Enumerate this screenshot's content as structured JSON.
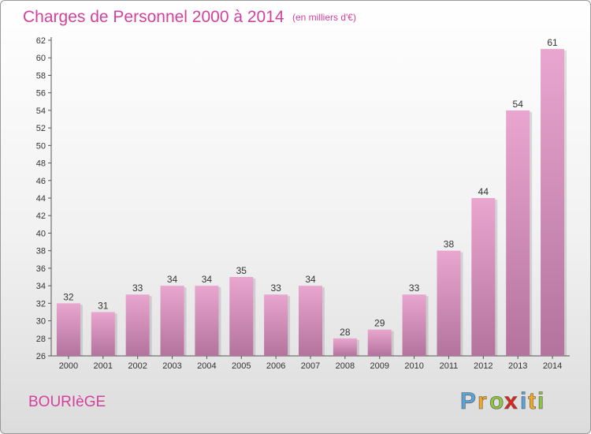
{
  "chart_data": {
    "type": "bar",
    "title": "Charges de Personnel 2000 à 2014",
    "subtitle": "(en milliers d'€)",
    "categories": [
      "2000",
      "2001",
      "2002",
      "2003",
      "2004",
      "2005",
      "2006",
      "2007",
      "2008",
      "2009",
      "2010",
      "2011",
      "2012",
      "2013",
      "2014"
    ],
    "values": [
      32,
      31,
      33,
      34,
      34,
      35,
      33,
      34,
      28,
      29,
      33,
      38,
      44,
      54,
      61
    ],
    "ylim": [
      26,
      62
    ],
    "yticks": [
      26,
      28,
      30,
      32,
      34,
      36,
      38,
      40,
      42,
      44,
      46,
      48,
      50,
      52,
      54,
      56,
      58,
      60,
      62
    ],
    "grid": false,
    "legend": "none",
    "bar_color_top": "#e9a6cf",
    "bar_color_bottom": "#b3739d"
  },
  "commune": "BOURIèGE",
  "logo": {
    "letters": [
      "P",
      "r",
      "o",
      "x",
      "i",
      "t",
      "i"
    ],
    "colors": [
      "#5aa3d8",
      "#f5a623",
      "#8cc63f",
      "#e2231a",
      "#5aa3d8",
      "#f5a623",
      "#8cc63f"
    ]
  }
}
